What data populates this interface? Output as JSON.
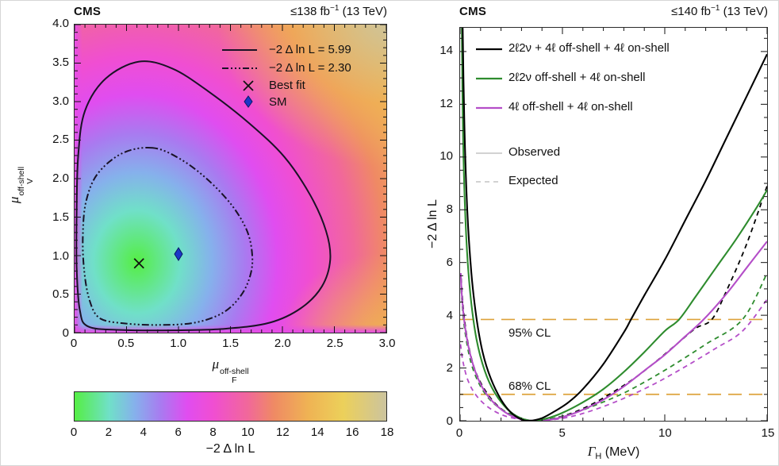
{
  "figure": {
    "left": {
      "title": "CMS",
      "lumi": {
        "prefix": "≤138 fb",
        "sup": "−1",
        "suffix": " (13 TeV)"
      },
      "legend": [
        {
          "label": "−2 Δ ln L = 5.99",
          "symbol": "solid-line"
        },
        {
          "label": "−2 Δ ln L = 2.30",
          "symbol": "dashdot-line"
        },
        {
          "label": "Best fit",
          "symbol": "cross-marker"
        },
        {
          "label": "SM",
          "symbol": "diamond-marker"
        }
      ],
      "xlabel": {
        "base": "μ",
        "sub": "F",
        "sup": "off-shell"
      },
      "ylabel": {
        "base": "μ",
        "sub": "V",
        "sup": "off-shell"
      },
      "colorbar_label": "−2 Δ ln L"
    },
    "right": {
      "title": "CMS",
      "lumi": {
        "prefix": "≤140 fb",
        "sup": "−1",
        "suffix": " (13 TeV)"
      },
      "legend": [
        {
          "label": "2ℓ2ν + 4ℓ off-shell + 4ℓ on-shell"
        },
        {
          "label": "2ℓ2ν off-shell + 4ℓ on-shell"
        },
        {
          "label": "4ℓ off-shell + 4ℓ on-shell"
        },
        {
          "label": "Observed"
        },
        {
          "label": "Expected"
        }
      ],
      "xlabel": {
        "base": "Γ",
        "sub": "H",
        "suffix": " (MeV)"
      },
      "ylabel": "−2 Δ ln L"
    }
  },
  "chart_data": [
    {
      "type": "heatmap",
      "title": "CMS off-shell signal-strength 2D likelihood scan",
      "xlabel": "mu_F^off-shell",
      "ylabel": "mu_V^off-shell",
      "zlabel": "−2 Δ ln L",
      "xlim": [
        0,
        3
      ],
      "ylim": [
        0,
        4
      ],
      "xticks": [
        0,
        0.5,
        1,
        1.5,
        2,
        2.5,
        3
      ],
      "x_tick_labels": [
        "0",
        "0.5",
        "1.0",
        "1.5",
        "2.0",
        "2.5",
        "3.0"
      ],
      "yticks": [
        0,
        0.5,
        1,
        1.5,
        2,
        2.5,
        3,
        3.5,
        4
      ],
      "y_tick_labels": [
        "0",
        "0.5",
        "1.0",
        "1.5",
        "2.0",
        "2.5",
        "3.0",
        "3.5",
        "4.0"
      ],
      "x_minor": 0.1,
      "y_minor": 0.1,
      "best_fit": [
        0.62,
        0.9
      ],
      "sm": [
        1.0,
        1.02
      ],
      "sm_color": "#1c36c8",
      "contour_color": "#1a1226",
      "colorbar": {
        "range": [
          0,
          18
        ],
        "tick_values": [
          0,
          2,
          4,
          6,
          8,
          10,
          12,
          14,
          16,
          18
        ],
        "tick_labels": [
          "0",
          "2",
          "4",
          "6",
          "8",
          "10",
          "12",
          "14",
          "16",
          "18"
        ],
        "stops": [
          [
            0,
            "#55ee44"
          ],
          [
            2,
            "#70e0c8"
          ],
          [
            3.5,
            "#86b0ec"
          ],
          [
            5,
            "#a97af0"
          ],
          [
            6.5,
            "#e04df0"
          ],
          [
            8,
            "#f04ed2"
          ],
          [
            10,
            "#f1689a"
          ],
          [
            11.5,
            "#ef8a64"
          ],
          [
            13.5,
            "#efb354"
          ],
          [
            15.5,
            "#ecd05a"
          ],
          [
            18,
            "#ccc49e"
          ]
        ]
      },
      "contours": [
        {
          "level": 5.99,
          "style": "solid",
          "points": [
            [
              0.62,
              3.52
            ],
            [
              0.3,
              3.3
            ],
            [
              0.1,
              2.88
            ],
            [
              0.035,
              2.3
            ],
            [
              0.02,
              1.55
            ],
            [
              0.02,
              0.85
            ],
            [
              0.05,
              0.3
            ],
            [
              0.13,
              0.08
            ],
            [
              0.45,
              0.035
            ],
            [
              0.95,
              0.03
            ],
            [
              1.45,
              0.05
            ],
            [
              1.88,
              0.13
            ],
            [
              2.18,
              0.32
            ],
            [
              2.38,
              0.6
            ],
            [
              2.46,
              0.95
            ],
            [
              2.42,
              1.32
            ],
            [
              2.27,
              1.78
            ],
            [
              2.02,
              2.28
            ],
            [
              1.68,
              2.72
            ],
            [
              1.28,
              3.14
            ],
            [
              0.94,
              3.43
            ]
          ]
        },
        {
          "level": 2.3,
          "style": "dashdot",
          "points": [
            [
              0.75,
              2.4
            ],
            [
              0.46,
              2.33
            ],
            [
              0.22,
              2.06
            ],
            [
              0.11,
              1.7
            ],
            [
              0.08,
              1.28
            ],
            [
              0.09,
              0.84
            ],
            [
              0.14,
              0.44
            ],
            [
              0.24,
              0.19
            ],
            [
              0.48,
              0.12
            ],
            [
              0.82,
              0.1
            ],
            [
              1.16,
              0.13
            ],
            [
              1.43,
              0.26
            ],
            [
              1.6,
              0.48
            ],
            [
              1.69,
              0.74
            ],
            [
              1.71,
              1.0
            ],
            [
              1.66,
              1.32
            ],
            [
              1.51,
              1.66
            ],
            [
              1.27,
              2.0
            ],
            [
              1.01,
              2.26
            ]
          ]
        }
      ]
    },
    {
      "type": "line",
      "title": "CMS Higgs total width likelihood scan",
      "xlabel": "Gamma_H (MeV)",
      "ylabel": "−2 Δ ln L",
      "xlim": [
        0,
        15
      ],
      "ylim": [
        0,
        14.9
      ],
      "xticks": [
        0,
        5,
        10,
        15
      ],
      "x_minor": 1,
      "x_tick_labels": [
        "0",
        "5",
        "10",
        "15"
      ],
      "yticks": [
        0,
        2,
        4,
        6,
        8,
        10,
        12,
        14
      ],
      "y_minor": 0.5,
      "y_tick_labels": [
        "0",
        "2",
        "4",
        "6",
        "8",
        "10",
        "12",
        "14"
      ],
      "cl_color": "#dda23a",
      "cl_lines": [
        {
          "label": "95% CL",
          "y": 3.84
        },
        {
          "label": "68% CL",
          "y": 1.0
        }
      ],
      "series": [
        {
          "name": "2ℓ2ν + 4ℓ off-shell + 4ℓ on-shell (Expected)",
          "color": "#000000",
          "style": "dashed",
          "points": [
            [
              0.05,
              5.4
            ],
            [
              0.15,
              4.3
            ],
            [
              0.35,
              3.1
            ],
            [
              0.65,
              2.1
            ],
            [
              1.0,
              1.45
            ],
            [
              1.5,
              0.85
            ],
            [
              2.1,
              0.4
            ],
            [
              2.8,
              0.12
            ],
            [
              3.6,
              0.0
            ],
            [
              4.5,
              0.08
            ],
            [
              5.5,
              0.3
            ],
            [
              6.5,
              0.65
            ],
            [
              7.5,
              1.1
            ],
            [
              8.5,
              1.6
            ],
            [
              9.5,
              2.2
            ],
            [
              10.5,
              2.85
            ],
            [
              11.5,
              3.5
            ],
            [
              12.3,
              3.84
            ],
            [
              13.0,
              4.9
            ],
            [
              14.0,
              6.7
            ],
            [
              15.0,
              8.9
            ]
          ]
        },
        {
          "name": "2ℓ2ν off-shell + 4ℓ on-shell (Expected)",
          "color": "#2e8c2e",
          "style": "dashed",
          "points": [
            [
              0.05,
              5.0
            ],
            [
              0.2,
              3.6
            ],
            [
              0.5,
              2.3
            ],
            [
              0.9,
              1.45
            ],
            [
              1.4,
              0.85
            ],
            [
              2.0,
              0.45
            ],
            [
              2.8,
              0.15
            ],
            [
              3.6,
              0.0
            ],
            [
              4.6,
              0.1
            ],
            [
              5.6,
              0.3
            ],
            [
              6.8,
              0.65
            ],
            [
              8.0,
              1.05
            ],
            [
              9.2,
              1.55
            ],
            [
              10.5,
              2.15
            ],
            [
              12.0,
              2.9
            ],
            [
              13.8,
              3.84
            ],
            [
              15.0,
              5.6
            ]
          ]
        },
        {
          "name": "4ℓ off-shell + 4ℓ on-shell (Expected)",
          "color": "#b44ec8",
          "style": "dashed",
          "points": [
            [
              0.02,
              2.9
            ],
            [
              0.15,
              2.2
            ],
            [
              0.4,
              1.5
            ],
            [
              0.8,
              0.95
            ],
            [
              1.4,
              0.5
            ],
            [
              2.2,
              0.18
            ],
            [
              3.2,
              0.02
            ],
            [
              4.0,
              0.0
            ],
            [
              5.2,
              0.12
            ],
            [
              6.5,
              0.4
            ],
            [
              8.0,
              0.85
            ],
            [
              9.5,
              1.4
            ],
            [
              11.0,
              2.05
            ],
            [
              12.5,
              2.75
            ],
            [
              13.8,
              3.4
            ],
            [
              15.0,
              4.6
            ]
          ]
        },
        {
          "name": "4ℓ off-shell + 4ℓ on-shell (Observed)",
          "color": "#b44ec8",
          "style": "solid",
          "points": [
            [
              0.03,
              5.6
            ],
            [
              0.1,
              4.6
            ],
            [
              0.25,
              3.5
            ],
            [
              0.5,
              2.5
            ],
            [
              0.85,
              1.65
            ],
            [
              1.3,
              1.0
            ],
            [
              1.9,
              0.5
            ],
            [
              2.6,
              0.15
            ],
            [
              3.3,
              0.02
            ],
            [
              3.9,
              0.0
            ],
            [
              4.8,
              0.1
            ],
            [
              5.8,
              0.35
            ],
            [
              7.0,
              0.8
            ],
            [
              8.0,
              1.3
            ],
            [
              9.0,
              1.9
            ],
            [
              10.0,
              2.5
            ],
            [
              11.0,
              3.2
            ],
            [
              11.9,
              3.84
            ],
            [
              13.0,
              4.8
            ],
            [
              14.0,
              5.8
            ],
            [
              15.0,
              6.8
            ]
          ]
        },
        {
          "name": "2ℓ2ν off-shell + 4ℓ on-shell (Observed)",
          "color": "#2e8c2e",
          "style": "solid",
          "points": [
            [
              0.08,
              15.2
            ],
            [
              0.15,
              10.5
            ],
            [
              0.3,
              7.0
            ],
            [
              0.5,
              4.8
            ],
            [
              0.8,
              3.1
            ],
            [
              1.2,
              1.9
            ],
            [
              1.7,
              1.05
            ],
            [
              2.3,
              0.45
            ],
            [
              2.9,
              0.12
            ],
            [
              3.5,
              0.0
            ],
            [
              4.2,
              0.08
            ],
            [
              5.0,
              0.3
            ],
            [
              6.0,
              0.7
            ],
            [
              7.0,
              1.2
            ],
            [
              8.0,
              1.85
            ],
            [
              9.0,
              2.6
            ],
            [
              10.0,
              3.4
            ],
            [
              10.7,
              3.84
            ],
            [
              11.5,
              4.7
            ],
            [
              12.5,
              5.8
            ],
            [
              13.5,
              6.9
            ],
            [
              14.5,
              8.1
            ],
            [
              15.0,
              8.75
            ]
          ]
        },
        {
          "name": "2ℓ2ν + 4ℓ off-shell + 4ℓ on-shell (Observed)",
          "color": "#000000",
          "style": "solid",
          "points": [
            [
              0.12,
              15.2
            ],
            [
              0.2,
              11.5
            ],
            [
              0.35,
              8.0
            ],
            [
              0.55,
              5.6
            ],
            [
              0.8,
              3.9
            ],
            [
              1.1,
              2.6
            ],
            [
              1.5,
              1.6
            ],
            [
              2.0,
              0.8
            ],
            [
              2.5,
              0.3
            ],
            [
              3.0,
              0.05
            ],
            [
              3.4,
              0.0
            ],
            [
              4.0,
              0.1
            ],
            [
              4.6,
              0.35
            ],
            [
              5.3,
              0.7
            ],
            [
              6.0,
              1.2
            ],
            [
              7.0,
              2.15
            ],
            [
              8.0,
              3.35
            ],
            [
              8.35,
              3.84
            ],
            [
              9.0,
              4.75
            ],
            [
              10.0,
              6.1
            ],
            [
              11.0,
              7.6
            ],
            [
              12.0,
              9.1
            ],
            [
              13.0,
              10.7
            ],
            [
              14.0,
              12.3
            ],
            [
              15.0,
              13.9
            ]
          ]
        }
      ],
      "legend_styles": [
        {
          "color": "#000000",
          "dash": "none",
          "w": 2.2
        },
        {
          "color": "#2e8c2e",
          "dash": "none",
          "w": 2.2
        },
        {
          "color": "#b44ec8",
          "dash": "none",
          "w": 2.2
        },
        {
          "color": "#c4c4c4",
          "dash": "none",
          "w": 1.6
        },
        {
          "color": "#c4c4c4",
          "dash": "6 5",
          "w": 1.6
        }
      ]
    }
  ]
}
